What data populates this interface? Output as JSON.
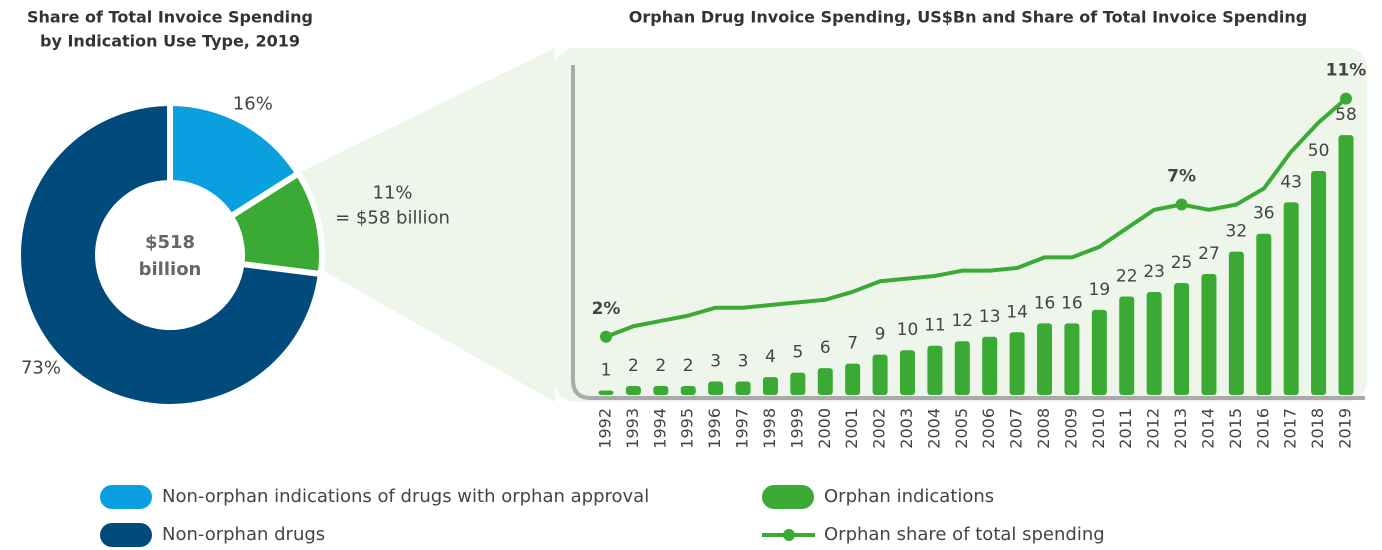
{
  "chart_data": [
    {
      "type": "pie",
      "title": [
        "Share of Total Invoice Spending",
        "by Indication Use Type, 2019"
      ],
      "categories": [
        "Non-orphan indications of drugs with orphan approval",
        null,
        "Non-orphan drugs"
      ],
      "values": [
        16,
        11,
        73
      ],
      "value_labels": [
        "16%",
        "11%",
        "73%"
      ],
      "colors": [
        "#0aa0e0",
        "#3aaa35",
        "#004a7c"
      ],
      "center_label": [
        "$518",
        "billion"
      ],
      "annotation": "= $58 billion",
      "donut": true
    },
    {
      "type": "bar_line",
      "title": "Orphan Drug Invoice Spending, US$Bn and Share of Total Invoice Spending",
      "categories": [
        "1992",
        "1993",
        "1994",
        "1995",
        "1996",
        "1997",
        "1998",
        "1999",
        "2000",
        "2001",
        "2002",
        "2003",
        "2004",
        "2005",
        "2006",
        "2007",
        "2008",
        "2009",
        "2010",
        "2011",
        "2012",
        "2013",
        "2014",
        "2015",
        "2016",
        "2017",
        "2018",
        "2019"
      ],
      "series": [
        {
          "name": "Orphan indications",
          "color": "#3aaa35",
          "type": "bar",
          "values": [
            1,
            2,
            2,
            2,
            3,
            3,
            4,
            5,
            6,
            7,
            9,
            10,
            11,
            12,
            13,
            14,
            16,
            16,
            19,
            22,
            23,
            25,
            27,
            32,
            36,
            43,
            50,
            58
          ]
        },
        {
          "name": "Orphan share of total spending",
          "color": "#3aaa35",
          "type": "line",
          "axis": "y2",
          "values": [
            2.0,
            2.4,
            2.6,
            2.8,
            3.1,
            3.1,
            3.2,
            3.3,
            3.4,
            3.7,
            4.1,
            4.2,
            4.3,
            4.5,
            4.5,
            4.6,
            5.0,
            5.0,
            5.4,
            6.1,
            6.8,
            7.0,
            6.8,
            7.0,
            7.6,
            9.0,
            10.1,
            11.0
          ],
          "value_labels": [
            "2%",
            null,
            null,
            null,
            null,
            null,
            null,
            null,
            null,
            null,
            null,
            null,
            null,
            null,
            null,
            null,
            null,
            null,
            null,
            null,
            null,
            "7%",
            null,
            null,
            null,
            null,
            null,
            "11%"
          ]
        }
      ],
      "ylim": [
        0,
        75
      ],
      "y2lim": [
        -0.2,
        12.5
      ]
    }
  ]
}
